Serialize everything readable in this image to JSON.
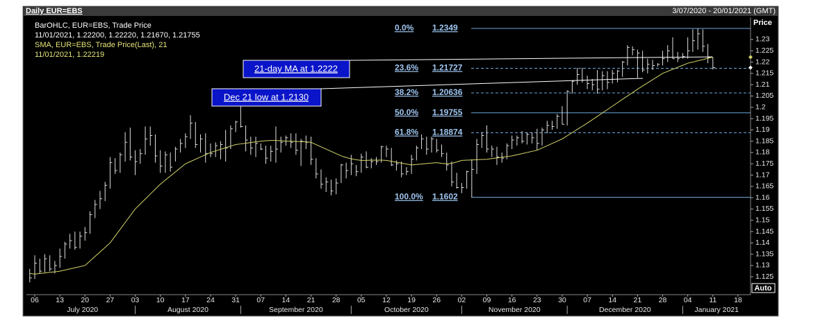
{
  "chart_data": {
    "type": "ohlc",
    "header": {
      "title": "Daily EUR=EBS",
      "range": "3/07/2020 - 20/01/2021 (GMT)",
      "axis_title": "Price",
      "scale_mode": "Auto"
    },
    "legend": [
      "BarOHLC, EUR=EBS, Trade Price",
      "11/01/2021, 1.22200, 1.22220, 1.21670, 1.21755",
      "SMA, EUR=EBS, Trade Price(Last),  21",
      "11/01/2021, 1.22219"
    ],
    "annotations": [
      "21-day MA at 1.2222",
      "Dec 21 low at 1.2130"
    ],
    "bar_color": "#e0e0e0",
    "sma_color": "#d6d66a",
    "fib_color": "#6fa8dc",
    "ylim": [
      1.1171,
      1.2398
    ],
    "xlim": [
      -0.66,
      143.5
    ],
    "yticks": [
      1.125,
      1.13,
      1.135,
      1.14,
      1.145,
      1.15,
      1.155,
      1.16,
      1.165,
      1.17,
      1.175,
      1.18,
      1.185,
      1.19,
      1.195,
      1.2,
      1.205,
      1.21,
      1.215,
      1.22,
      1.225,
      1.23
    ],
    "xticks": [
      {
        "value": 1,
        "label": "06"
      },
      {
        "value": 6,
        "label": "13"
      },
      {
        "value": 11,
        "label": "20"
      },
      {
        "value": 16,
        "label": "27"
      },
      {
        "value": 21,
        "label": "03"
      },
      {
        "value": 26,
        "label": "10"
      },
      {
        "value": 31,
        "label": "17"
      },
      {
        "value": 36,
        "label": "24"
      },
      {
        "value": 41,
        "label": "31"
      },
      {
        "value": 46,
        "label": "07"
      },
      {
        "value": 51,
        "label": "14"
      },
      {
        "value": 56,
        "label": "21"
      },
      {
        "value": 61,
        "label": "28"
      },
      {
        "value": 66,
        "label": "05"
      },
      {
        "value": 71,
        "label": "12"
      },
      {
        "value": 76,
        "label": "19"
      },
      {
        "value": 81,
        "label": "26"
      },
      {
        "value": 86,
        "label": "02"
      },
      {
        "value": 91,
        "label": "09"
      },
      {
        "value": 96,
        "label": "16"
      },
      {
        "value": 101,
        "label": "23"
      },
      {
        "value": 106,
        "label": "30"
      },
      {
        "value": 111,
        "label": "07"
      },
      {
        "value": 116,
        "label": "14"
      },
      {
        "value": 121,
        "label": "21"
      },
      {
        "value": 126,
        "label": "28"
      },
      {
        "value": 131,
        "label": "04"
      },
      {
        "value": 136,
        "label": "11"
      },
      {
        "value": 141,
        "label": "18"
      }
    ],
    "months": [
      {
        "value": 0,
        "label": "July 2020"
      },
      {
        "value": 21,
        "label": "August 2020"
      },
      {
        "value": 42,
        "label": "September 2020"
      },
      {
        "value": 64,
        "label": "October 2020"
      },
      {
        "value": 86,
        "label": "November 2020"
      },
      {
        "value": 107,
        "label": "December 2020"
      },
      {
        "value": 130,
        "label": "January 2021"
      }
    ],
    "fib_levels": [
      {
        "label": "0.0%",
        "value": 1.2349,
        "style": "solid"
      },
      {
        "label": "23.6%",
        "value": 1.21727,
        "style": "dashed"
      },
      {
        "label": "38.2%",
        "value": 1.20636,
        "style": "dashed"
      },
      {
        "label": "50.0%",
        "value": 1.19755,
        "style": "solid"
      },
      {
        "label": "61.8%",
        "value": 1.18874,
        "style": "dashed"
      },
      {
        "label": "100.0%",
        "value": 1.1602,
        "style": "solid"
      }
    ],
    "bars": [
      [
        1.1285,
        1.1225,
        1.1245
      ],
      [
        1.1345,
        1.124,
        1.131
      ],
      [
        1.133,
        1.1265,
        1.1275
      ],
      [
        1.135,
        1.127,
        1.133
      ],
      [
        1.1345,
        1.1275,
        1.1285
      ],
      [
        1.132,
        1.1265,
        1.13
      ],
      [
        1.1375,
        1.129,
        1.134
      ],
      [
        1.1405,
        1.133,
        1.1395
      ],
      [
        1.144,
        1.1375,
        1.141
      ],
      [
        1.145,
        1.137,
        1.138
      ],
      [
        1.145,
        1.1375,
        1.143
      ],
      [
        1.147,
        1.141,
        1.1445
      ],
      [
        1.154,
        1.144,
        1.1525
      ],
      [
        1.159,
        1.151,
        1.157
      ],
      [
        1.163,
        1.155,
        1.1595
      ],
      [
        1.167,
        1.1585,
        1.1655
      ],
      [
        1.178,
        1.164,
        1.1755
      ],
      [
        1.1775,
        1.1705,
        1.172
      ],
      [
        1.18,
        1.171,
        1.179
      ],
      [
        1.189,
        1.176,
        1.1845
      ],
      [
        1.191,
        1.1765,
        1.178
      ],
      [
        1.181,
        1.17,
        1.176
      ],
      [
        1.1815,
        1.175,
        1.1795
      ],
      [
        1.1915,
        1.179,
        1.186
      ],
      [
        1.1915,
        1.183,
        1.1875
      ],
      [
        1.188,
        1.1755,
        1.1785
      ],
      [
        1.181,
        1.171,
        1.174
      ],
      [
        1.1805,
        1.171,
        1.179
      ],
      [
        1.18,
        1.1715,
        1.1735
      ],
      [
        1.1825,
        1.176,
        1.1815
      ],
      [
        1.186,
        1.18,
        1.184
      ],
      [
        1.1885,
        1.182,
        1.187
      ],
      [
        1.1965,
        1.186,
        1.193
      ],
      [
        1.1935,
        1.182,
        1.1835
      ],
      [
        1.188,
        1.18,
        1.186
      ],
      [
        1.1885,
        1.1755,
        1.1795
      ],
      [
        1.184,
        1.178,
        1.1795
      ],
      [
        1.1845,
        1.178,
        1.183
      ],
      [
        1.185,
        1.177,
        1.1835
      ],
      [
        1.19,
        1.176,
        1.182
      ],
      [
        1.192,
        1.1815,
        1.1905
      ],
      [
        1.194,
        1.189,
        1.1935
      ],
      [
        1.2011,
        1.191,
        1.1915
      ],
      [
        1.192,
        1.1805,
        1.1855
      ],
      [
        1.187,
        1.179,
        1.182
      ],
      [
        1.187,
        1.178,
        1.184
      ],
      [
        1.184,
        1.181,
        1.1815
      ],
      [
        1.183,
        1.175,
        1.1775
      ],
      [
        1.183,
        1.176,
        1.1805
      ],
      [
        1.1915,
        1.1755,
        1.1815
      ],
      [
        1.187,
        1.18,
        1.1845
      ],
      [
        1.1875,
        1.183,
        1.1865
      ],
      [
        1.1885,
        1.182,
        1.1845
      ],
      [
        1.1885,
        1.179,
        1.181
      ],
      [
        1.186,
        1.174,
        1.185
      ],
      [
        1.1875,
        1.1815,
        1.1845
      ],
      [
        1.187,
        1.1745,
        1.177
      ],
      [
        1.1775,
        1.1685,
        1.1705
      ],
      [
        1.1725,
        1.164,
        1.166
      ],
      [
        1.169,
        1.1625,
        1.167
      ],
      [
        1.168,
        1.161,
        1.163
      ],
      [
        1.1685,
        1.1615,
        1.1665
      ],
      [
        1.175,
        1.1665,
        1.1745
      ],
      [
        1.1755,
        1.1685,
        1.172
      ],
      [
        1.179,
        1.17,
        1.175
      ],
      [
        1.1745,
        1.1695,
        1.1715
      ],
      [
        1.1795,
        1.171,
        1.178
      ],
      [
        1.1805,
        1.173,
        1.1735
      ],
      [
        1.1775,
        1.173,
        1.176
      ],
      [
        1.178,
        1.1745,
        1.176
      ],
      [
        1.183,
        1.1755,
        1.1825
      ],
      [
        1.183,
        1.178,
        1.1815
      ],
      [
        1.182,
        1.174,
        1.1745
      ],
      [
        1.1765,
        1.172,
        1.175
      ],
      [
        1.176,
        1.169,
        1.1705
      ],
      [
        1.1735,
        1.17,
        1.1715
      ],
      [
        1.179,
        1.1705,
        1.177
      ],
      [
        1.183,
        1.1765,
        1.182
      ],
      [
        1.188,
        1.1815,
        1.186
      ],
      [
        1.187,
        1.179,
        1.1815
      ],
      [
        1.187,
        1.18,
        1.186
      ],
      [
        1.186,
        1.18,
        1.181
      ],
      [
        1.1835,
        1.178,
        1.1795
      ],
      [
        1.18,
        1.172,
        1.1745
      ],
      [
        1.176,
        1.165,
        1.167
      ],
      [
        1.171,
        1.164,
        1.1645
      ],
      [
        1.1665,
        1.162,
        1.1645
      ],
      [
        1.172,
        1.164,
        1.1715
      ],
      [
        1.177,
        1.1602,
        1.1725
      ],
      [
        1.186,
        1.1705,
        1.1835
      ],
      [
        1.189,
        1.182,
        1.1875
      ],
      [
        1.192,
        1.18,
        1.1815
      ],
      [
        1.183,
        1.178,
        1.1815
      ],
      [
        1.1825,
        1.1745,
        1.178
      ],
      [
        1.18,
        1.1755,
        1.1775
      ],
      [
        1.184,
        1.177,
        1.183
      ],
      [
        1.1875,
        1.1815,
        1.1855
      ],
      [
        1.1875,
        1.183,
        1.1865
      ],
      [
        1.1895,
        1.184,
        1.185
      ],
      [
        1.189,
        1.1835,
        1.188
      ],
      [
        1.189,
        1.184,
        1.1865
      ],
      [
        1.1905,
        1.181,
        1.184
      ],
      [
        1.191,
        1.183,
        1.19
      ],
      [
        1.194,
        1.1885,
        1.192
      ],
      [
        1.194,
        1.19,
        1.1915
      ],
      [
        1.197,
        1.1905,
        1.196
      ],
      [
        1.2005,
        1.1925,
        1.1925
      ],
      [
        1.2075,
        1.192,
        1.207
      ],
      [
        1.212,
        1.206,
        1.2115
      ],
      [
        1.2175,
        1.21,
        1.2145
      ],
      [
        1.2175,
        1.211,
        1.212
      ],
      [
        1.214,
        1.208,
        1.2105
      ],
      [
        1.2125,
        1.2075,
        1.21
      ],
      [
        1.2165,
        1.206,
        1.208
      ],
      [
        1.216,
        1.2075,
        1.214
      ],
      [
        1.216,
        1.208,
        1.211
      ],
      [
        1.2165,
        1.2105,
        1.215
      ],
      [
        1.2165,
        1.211,
        1.216
      ],
      [
        1.2205,
        1.2135,
        1.22
      ],
      [
        1.2275,
        1.2185,
        1.2265
      ],
      [
        1.227,
        1.223,
        1.2255
      ],
      [
        1.2255,
        1.213,
        1.224
      ],
      [
        1.225,
        1.2155,
        1.2165
      ],
      [
        1.2215,
        1.215,
        1.219
      ],
      [
        1.221,
        1.2165,
        1.2185
      ],
      [
        1.2195,
        1.218,
        1.219
      ],
      [
        1.225,
        1.2185,
        1.2215
      ],
      [
        1.2275,
        1.22,
        1.225
      ],
      [
        1.231,
        1.2215,
        1.2215
      ],
      [
        1.2245,
        1.22,
        1.2215
      ],
      [
        1.224,
        1.2215,
        1.2225
      ],
      [
        1.231,
        1.2215,
        1.225
      ],
      [
        1.2345,
        1.2245,
        1.2295
      ],
      [
        1.2349,
        1.2255,
        1.2325
      ],
      [
        1.2345,
        1.2245,
        1.227
      ],
      [
        1.228,
        1.2195,
        1.222
      ],
      [
        1.2222,
        1.2167,
        1.21755
      ]
    ],
    "sma": [
      1.1265,
      1.1262,
      1.1265,
      1.1267,
      1.127,
      1.1272,
      1.1275,
      1.128,
      1.1285,
      1.129,
      1.1295,
      1.13,
      1.132,
      1.134,
      1.136,
      1.138,
      1.14,
      1.143,
      1.146,
      1.149,
      1.152,
      1.155,
      1.1572,
      1.1594,
      1.1616,
      1.1638,
      1.166,
      1.1678,
      1.1696,
      1.1714,
      1.1732,
      1.175,
      1.176,
      1.177,
      1.178,
      1.179,
      1.18,
      1.1807,
      1.1814,
      1.1821,
      1.1828,
      1.1835,
      1.1838,
      1.1841,
      1.1844,
      1.1847,
      1.185,
      1.1852,
      1.1853,
      1.1853,
      1.1852,
      1.185,
      1.185,
      1.1849,
      1.1848,
      1.1847,
      1.1845,
      1.1835,
      1.1825,
      1.1815,
      1.1805,
      1.1795,
      1.1785,
      1.1778,
      1.1772,
      1.1768,
      1.1765,
      1.1765,
      1.1766,
      1.1766,
      1.1766,
      1.1765,
      1.1761,
      1.1757,
      1.1753,
      1.1749,
      1.1745,
      1.1747,
      1.1749,
      1.1751,
      1.1753,
      1.1755,
      1.1752,
      1.175,
      1.1752,
      1.1758,
      1.1765,
      1.1766,
      1.1767,
      1.1768,
      1.1769,
      1.177,
      1.1773,
      1.1776,
      1.1779,
      1.1782,
      1.1785,
      1.179,
      1.1795,
      1.18,
      1.1805,
      1.181,
      1.182,
      1.183,
      1.184,
      1.185,
      1.186,
      1.1874,
      1.1888,
      1.1902,
      1.1916,
      1.193,
      1.1945,
      1.196,
      1.1975,
      1.199,
      1.2005,
      1.202,
      1.2035,
      1.205,
      1.2065,
      1.208,
      1.2094,
      1.2108,
      1.2122,
      1.2136,
      1.215,
      1.2159,
      1.2168,
      1.2177,
      1.2186,
      1.2195,
      1.22,
      1.2206,
      1.2211,
      1.2217,
      1.22219
    ]
  }
}
